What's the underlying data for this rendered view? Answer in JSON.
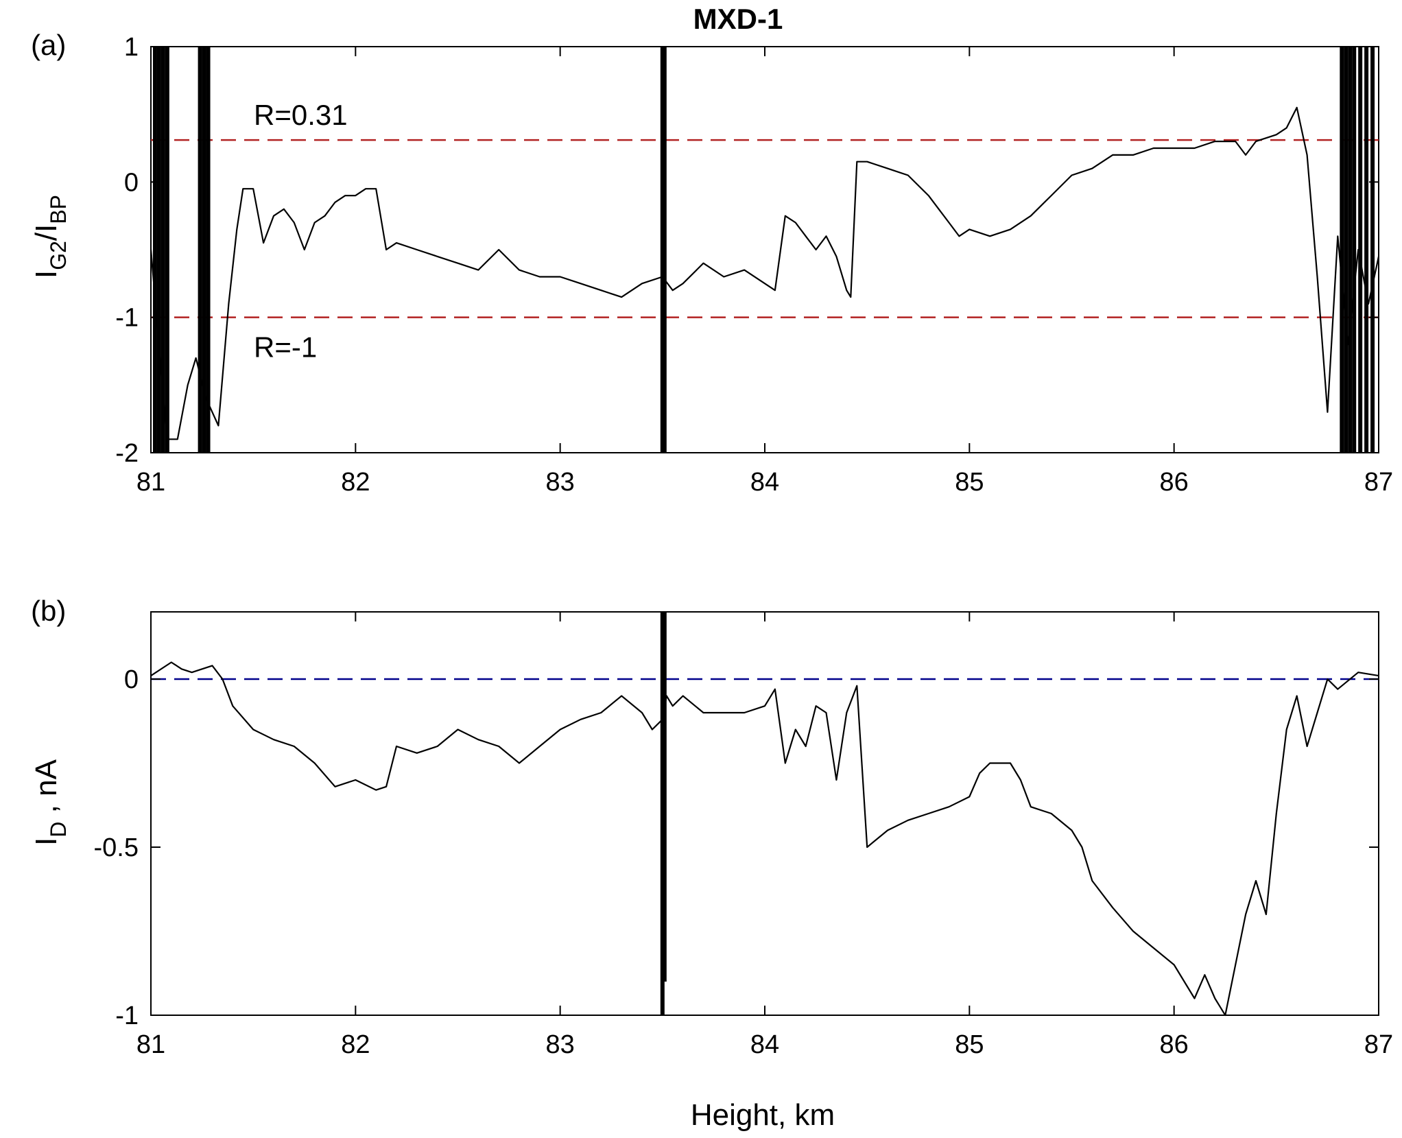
{
  "title": "MXD-1",
  "chart_data": [
    {
      "type": "line",
      "panel_label": "(a)",
      "xlim": [
        81,
        87
      ],
      "ylim": [
        -2,
        1
      ],
      "xticks": [
        "81",
        "82",
        "83",
        "84",
        "85",
        "86",
        "87"
      ],
      "yticks": [
        "-2",
        "-1",
        "0",
        "1"
      ],
      "ylabel": {
        "main": "I",
        "sub1": "G2",
        "slash": "/I",
        "sub2": "BP"
      },
      "xlabel": "",
      "grid": false,
      "reference_lines": [
        {
          "label": "R=0.31",
          "y": 0.31,
          "color": "#b22222",
          "style": "dashed"
        },
        {
          "label": "R=-1",
          "y": -1,
          "color": "#b22222",
          "style": "dashed"
        }
      ],
      "series": [
        {
          "color": "#000000",
          "x": [
            81.0,
            81.08,
            81.13,
            81.18,
            81.22,
            81.27,
            81.33,
            81.38,
            81.42,
            81.45,
            81.5,
            81.55,
            81.6,
            81.65,
            81.7,
            81.75,
            81.8,
            81.85,
            81.9,
            81.95,
            82.0,
            82.05,
            82.1,
            82.15,
            82.2,
            82.3,
            82.4,
            82.5,
            82.6,
            82.7,
            82.8,
            82.9,
            83.0,
            83.1,
            83.2,
            83.3,
            83.4,
            83.5,
            83.55,
            83.6,
            83.7,
            83.8,
            83.9,
            84.0,
            84.05,
            84.1,
            84.15,
            84.2,
            84.25,
            84.3,
            84.35,
            84.4,
            84.42,
            84.45,
            84.5,
            84.6,
            84.7,
            84.8,
            84.85,
            84.9,
            84.95,
            85.0,
            85.1,
            85.2,
            85.3,
            85.4,
            85.5,
            85.6,
            85.7,
            85.8,
            85.9,
            86.0,
            86.1,
            86.2,
            86.3,
            86.35,
            86.4,
            86.5,
            86.55,
            86.6,
            86.65,
            86.7,
            86.75,
            86.8,
            86.85,
            86.9,
            86.95,
            87.0
          ],
          "y": [
            -0.5,
            -1.9,
            -1.9,
            -1.5,
            -1.3,
            -1.6,
            -1.8,
            -0.9,
            -0.35,
            -0.05,
            -0.05,
            -0.45,
            -0.25,
            -0.2,
            -0.3,
            -0.5,
            -0.3,
            -0.25,
            -0.15,
            -0.1,
            -0.1,
            -0.05,
            -0.05,
            -0.5,
            -0.45,
            -0.5,
            -0.55,
            -0.6,
            -0.65,
            -0.5,
            -0.65,
            -0.7,
            -0.7,
            -0.75,
            -0.8,
            -0.85,
            -0.75,
            -0.7,
            -0.8,
            -0.75,
            -0.6,
            -0.7,
            -0.65,
            -0.75,
            -0.8,
            -0.25,
            -0.3,
            -0.4,
            -0.5,
            -0.4,
            -0.55,
            -0.8,
            -0.85,
            0.15,
            0.15,
            0.1,
            0.05,
            -0.1,
            -0.2,
            -0.3,
            -0.4,
            -0.35,
            -0.4,
            -0.35,
            -0.25,
            -0.1,
            0.05,
            0.1,
            0.2,
            0.2,
            0.25,
            0.25,
            0.25,
            0.3,
            0.3,
            0.2,
            0.3,
            0.35,
            0.4,
            0.55,
            0.2,
            -0.7,
            -1.7,
            -0.4,
            -1.2,
            -0.5,
            -0.9,
            -0.55
          ]
        }
      ],
      "bursts": [
        {
          "x": 81.02,
          "y_from": -2,
          "y_to": 1
        },
        {
          "x": 81.04,
          "y_from": -2,
          "y_to": 1
        },
        {
          "x": 81.06,
          "y_from": -2,
          "y_to": 1
        },
        {
          "x": 81.08,
          "y_from": -2,
          "y_to": 1
        },
        {
          "x": 81.24,
          "y_from": -2,
          "y_to": 1
        },
        {
          "x": 81.26,
          "y_from": -2,
          "y_to": 1
        },
        {
          "x": 81.28,
          "y_from": -2,
          "y_to": 1
        },
        {
          "x": 83.5,
          "y_from": -2,
          "y_to": 1
        },
        {
          "x": 83.51,
          "y_from": -2,
          "y_to": 1
        },
        {
          "x": 86.82,
          "y_from": -2,
          "y_to": 1
        },
        {
          "x": 86.84,
          "y_from": -2,
          "y_to": 1
        },
        {
          "x": 86.86,
          "y_from": -2,
          "y_to": 1
        },
        {
          "x": 86.88,
          "y_from": -2,
          "y_to": 1
        },
        {
          "x": 86.91,
          "y_from": -2,
          "y_to": 1
        },
        {
          "x": 86.94,
          "y_from": -2,
          "y_to": 1
        },
        {
          "x": 86.97,
          "y_from": -2,
          "y_to": 1
        }
      ]
    },
    {
      "type": "line",
      "panel_label": "(b)",
      "xlim": [
        81,
        87
      ],
      "ylim": [
        -1,
        0.2
      ],
      "xticks": [
        "81",
        "82",
        "83",
        "84",
        "85",
        "86",
        "87"
      ],
      "yticks": [
        "-1",
        "-0.5",
        "0"
      ],
      "ylabel": {
        "main": "I",
        "sub1": "D",
        "rest": " , nA"
      },
      "xlabel": "Height, km",
      "grid": false,
      "reference_lines": [
        {
          "label": "",
          "y": 0,
          "color": "#00008b",
          "style": "dashed"
        }
      ],
      "series": [
        {
          "color": "#000000",
          "x": [
            81.0,
            81.1,
            81.15,
            81.2,
            81.3,
            81.35,
            81.4,
            81.5,
            81.6,
            81.7,
            81.8,
            81.9,
            82.0,
            82.1,
            82.15,
            82.2,
            82.3,
            82.4,
            82.5,
            82.6,
            82.7,
            82.8,
            82.9,
            83.0,
            83.1,
            83.2,
            83.3,
            83.4,
            83.45,
            83.5,
            83.52,
            83.55,
            83.6,
            83.7,
            83.8,
            83.9,
            84.0,
            84.05,
            84.1,
            84.15,
            84.2,
            84.25,
            84.3,
            84.35,
            84.4,
            84.45,
            84.5,
            84.6,
            84.7,
            84.8,
            84.9,
            85.0,
            85.05,
            85.1,
            85.2,
            85.25,
            85.3,
            85.4,
            85.5,
            85.55,
            85.6,
            85.7,
            85.8,
            85.9,
            86.0,
            86.05,
            86.1,
            86.15,
            86.2,
            86.25,
            86.3,
            86.35,
            86.4,
            86.45,
            86.5,
            86.55,
            86.6,
            86.65,
            86.7,
            86.75,
            86.8,
            86.9,
            87.0
          ],
          "y": [
            0.01,
            0.05,
            0.03,
            0.02,
            0.04,
            0.0,
            -0.08,
            -0.15,
            -0.18,
            -0.2,
            -0.25,
            -0.32,
            -0.3,
            -0.33,
            -0.32,
            -0.2,
            -0.22,
            -0.2,
            -0.15,
            -0.18,
            -0.2,
            -0.25,
            -0.2,
            -0.15,
            -0.12,
            -0.1,
            -0.05,
            -0.1,
            -0.15,
            -0.12,
            -0.05,
            -0.08,
            -0.05,
            -0.1,
            -0.1,
            -0.1,
            -0.08,
            -0.03,
            -0.25,
            -0.15,
            -0.2,
            -0.08,
            -0.1,
            -0.3,
            -0.1,
            -0.02,
            -0.5,
            -0.45,
            -0.42,
            -0.4,
            -0.38,
            -0.35,
            -0.28,
            -0.25,
            -0.25,
            -0.3,
            -0.38,
            -0.4,
            -0.45,
            -0.5,
            -0.6,
            -0.68,
            -0.75,
            -0.8,
            -0.85,
            -0.9,
            -0.95,
            -0.88,
            -0.95,
            -1.0,
            -0.85,
            -0.7,
            -0.6,
            -0.7,
            -0.4,
            -0.15,
            -0.05,
            -0.2,
            -0.1,
            0.0,
            -0.03,
            0.02,
            0.01
          ]
        }
      ],
      "bursts": [
        {
          "x": 83.5,
          "y_from": -1,
          "y_to": 0.2
        },
        {
          "x": 83.51,
          "y_from": -0.9,
          "y_to": 0.2
        }
      ]
    }
  ]
}
